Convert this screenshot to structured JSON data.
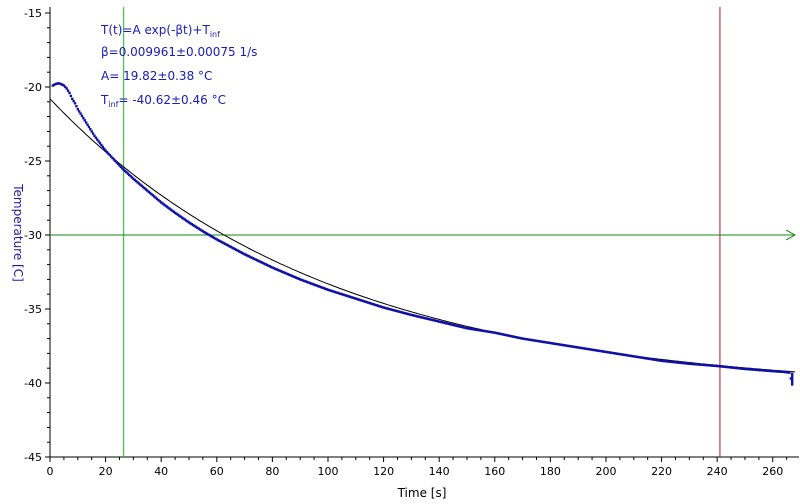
{
  "chart_data": {
    "type": "scatter",
    "xlabel": "Time [s]",
    "ylabel": "Temperature [C]",
    "xlim": [
      0,
      268
    ],
    "ylim": [
      -45,
      -15
    ],
    "x_ticks": [
      0,
      20,
      40,
      60,
      80,
      100,
      120,
      140,
      160,
      180,
      200,
      220,
      240,
      260
    ],
    "y_ticks": [
      -15,
      -20,
      -25,
      -30,
      -35,
      -40,
      -45
    ],
    "grid": false,
    "colors": {
      "data": "#1010a8",
      "fit": "#000000",
      "cursor_vertical_1": "#22bb22",
      "cursor_vertical_2": "#b01818",
      "cursor_horizontal": "#118811",
      "annotation_text": "#1a1ab8"
    },
    "annotation": {
      "line1_main": "T(t)=A exp(-βt)+T",
      "line1_sub": "inf",
      "line2": "β=0.009961±0.00075 1/s",
      "line3": "A= 19.82±0.38 °C",
      "line4_main": "T",
      "line4_sub": "inf",
      "line4_rest": "= -40.62±0.46 °C"
    },
    "fit": {
      "A": 19.82,
      "beta": 0.009961,
      "T_inf": -40.62
    },
    "cursors": {
      "x1": 26.5,
      "x2": 241,
      "y": -30
    },
    "series": [
      {
        "x": [
          1,
          2,
          3,
          4,
          5,
          6,
          7,
          8,
          9,
          10,
          12,
          14,
          16,
          18,
          20,
          22,
          24,
          26,
          28,
          30,
          35,
          40,
          45,
          50,
          55,
          60,
          65,
          70,
          75,
          80,
          85,
          90,
          95,
          100,
          110,
          120,
          130,
          140,
          150,
          160,
          170,
          180,
          190,
          200,
          210,
          220,
          230,
          240,
          250,
          260,
          264,
          266,
          267
        ],
        "y": [
          -19.9,
          -19.8,
          -19.75,
          -19.8,
          -19.9,
          -20.1,
          -20.4,
          -20.8,
          -21.1,
          -21.5,
          -22.1,
          -22.7,
          -23.3,
          -23.8,
          -24.3,
          -24.7,
          -25.1,
          -25.5,
          -25.85,
          -26.2,
          -27.0,
          -27.8,
          -28.5,
          -29.15,
          -29.75,
          -30.3,
          -30.8,
          -31.3,
          -31.75,
          -32.2,
          -32.6,
          -33.0,
          -33.35,
          -33.7,
          -34.3,
          -34.9,
          -35.4,
          -35.85,
          -36.3,
          -36.6,
          -37.0,
          -37.3,
          -37.6,
          -37.9,
          -38.2,
          -38.5,
          -38.7,
          -38.85,
          -39.05,
          -39.2,
          -39.25,
          -39.3,
          -40.1
        ]
      }
    ]
  }
}
